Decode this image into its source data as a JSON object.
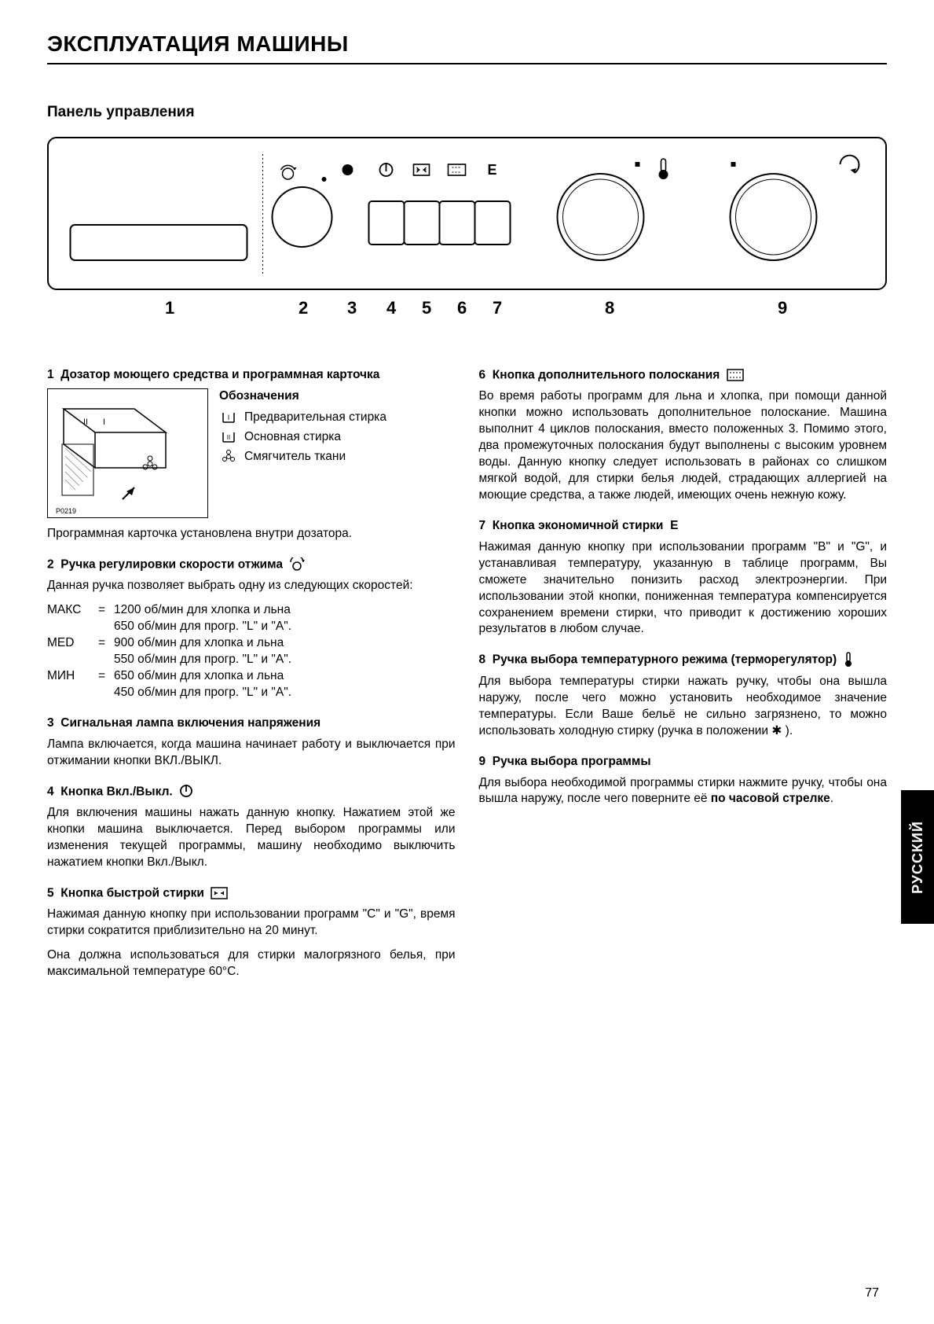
{
  "colors": {
    "ink": "#000000",
    "paper": "#ffffff"
  },
  "title": "ЭКСПЛУАТАЦИЯ МАШИНЫ",
  "subtitle": "Панель управления",
  "callout_numbers": [
    "1",
    "2",
    "3",
    "4",
    "5",
    "6",
    "7",
    "8",
    "9"
  ],
  "legend": {
    "title": "Обозначения",
    "items": [
      {
        "sym": "I",
        "text": "Предварительная стирка"
      },
      {
        "sym": "II",
        "text": "Основная стирка"
      },
      {
        "sym": "flower",
        "text": "Смягчитель ткани"
      }
    ]
  },
  "sec1": {
    "heading_num": "1",
    "heading": "Дозатор моющего средства и программная карточка",
    "footnote": "Программная карточка установлена внутри дозатора."
  },
  "sec2": {
    "heading_num": "2",
    "heading": "Ручка регулировки скорости отжима",
    "intro": "Данная ручка позволяет выбрать одну из следующих скоростей:",
    "rows": [
      {
        "label": "МАКС",
        "l1": "1200 об/мин для хлопка и льна",
        "l2": "650 об/мин для прогр. \"L\" и \"A\"."
      },
      {
        "label": "MED",
        "l1": "900 об/мин для хлопка и льна",
        "l2": "550 об/мин для прогр. \"L\" и \"A\"."
      },
      {
        "label": "МИН",
        "l1": "650 об/мин для хлопка и льна",
        "l2": "450 об/мин для прогр. \"L\" и \"A\"."
      }
    ]
  },
  "sec3": {
    "heading_num": "3",
    "heading": "Сигнальная лампа включения напряжения",
    "body": "Лампа включается, когда машина начинает работу и выключается при отжимании кнопки ВКЛ./ВЫКЛ."
  },
  "sec4": {
    "heading_num": "4",
    "heading": "Кнопка Вкл./Выкл.",
    "body": "Для включения машины нажать данную кнопку. Нажатием этой же кнопки машина выключается. Перед выбором программы или изменения текущей программы, машину необходимо выключить нажатием кнопки Вкл./Выкл."
  },
  "sec5": {
    "heading_num": "5",
    "heading": "Кнопка быстрой стирки",
    "body1": "Нажимая данную кнопку при использовании программ \"C\" и \"G\", время стирки сократится приблизительно на 20 минут.",
    "body2": "Она должна использоваться для стирки малогрязного белья, при максимальной температуре 60°C."
  },
  "sec6": {
    "heading_num": "6",
    "heading": "Кнопка дополнительного полоскания",
    "body": "Во время работы программ для льна и хлопка, при помощи данной кнопки можно использовать дополнительное полоскание. Машина выполнит 4 циклов полоскания, вместо положенных 3. Помимо этого, два промежуточных полоскания будут выполнены с высоким уровнем воды. Данную кнопку следует использовать в районах со слишком мягкой водой, для стирки белья людей, страдающих аллергией на моющие средства, а также людей, имеющих очень нежную кожу."
  },
  "sec7": {
    "heading_num": "7",
    "heading": "Кнопка экономичной стирки",
    "heading_letter": "E",
    "body": "Нажимая данную кнопку при использовании программ \"B\" и \"G\", и устанавливая температуру, указанную в таблице программ, Вы сможете значительно понизить расход электроэнергии. При использовании этой кнопки, пониженная температура компенсируется сохранением времени стирки, что приводит к достижению хороших результатов в любом случае."
  },
  "sec8": {
    "heading_num": "8",
    "heading": "Ручка выбора температурного режима (терморегулятор)",
    "body": "Для выбора температуры стирки нажать ручку, чтобы она вышла наружу, после чего можно установить необходимое значение температуры. Если Ваше бельё не сильно загрязнено, то можно использовать холодную стирку (ручка в положении ✱ )."
  },
  "sec9": {
    "heading_num": "9",
    "heading": "Ручка выбора программы",
    "body": "Для выбора необходимой программы стирки нажмите ручку, чтобы она вышла наружу, после чего поверните её по часовой стрелке.",
    "bold_phrase": "по часовой стрелке"
  },
  "side_tab": "РУССКИЙ",
  "page_number": "77"
}
